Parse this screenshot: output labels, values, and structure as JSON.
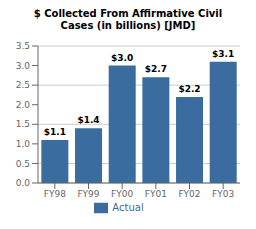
{
  "chart_data": {
    "type": "bar",
    "title": "$ Collected From Affirmative Civil\nCases (in billions) [JMD]",
    "categories": [
      "FY98",
      "FY99",
      "FY00",
      "FY01",
      "FY02",
      "FY03"
    ],
    "series": [
      {
        "name": "Actual",
        "color": "#3a6ca0",
        "values": [
          1.1,
          1.4,
          3.0,
          2.7,
          2.2,
          3.1
        ],
        "value_labels": [
          "$1.1",
          "$1.4",
          "$3.0",
          "$2.7",
          "$2.2",
          "$3.1"
        ]
      }
    ],
    "ylim": [
      0.0,
      3.5
    ],
    "yticks": [
      {
        "value": 0,
        "label": "0.0"
      },
      0.5,
      {
        "value": 1,
        "label": "1.0"
      },
      1.5,
      {
        "value": 2,
        "label": "2.0"
      },
      2.5,
      {
        "value": 3,
        "label": "3.0"
      },
      3.5
    ],
    "grid": true,
    "legend": "bottom",
    "data_labels": true
  }
}
